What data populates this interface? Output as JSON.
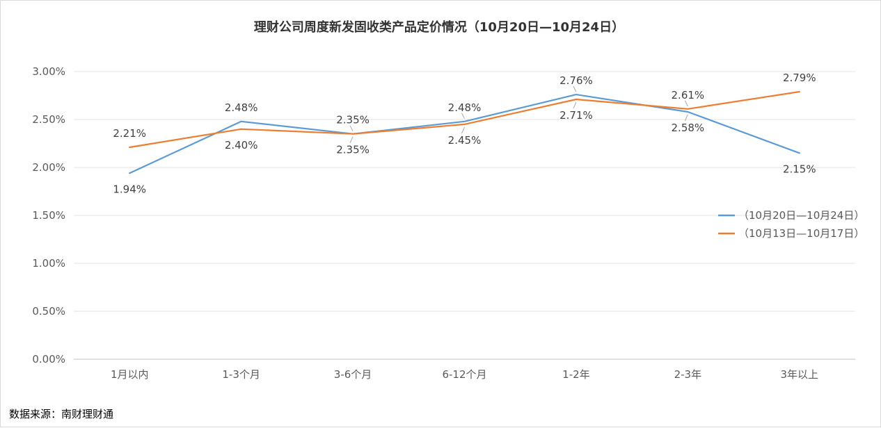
{
  "chart_data": {
    "type": "line",
    "title": "理财公司周度新发固收类产品定价情况（10月20日—10月24日）",
    "categories": [
      "1月以内",
      "1-3个月",
      "3-6个月",
      "6-12个月",
      "1-2年",
      "2-3年",
      "3年以上"
    ],
    "y_tick_labels": [
      "0.00%",
      "0.50%",
      "1.00%",
      "1.50%",
      "2.00%",
      "2.50%",
      "3.00%"
    ],
    "ylim": [
      0,
      3.0
    ],
    "y_unit": "%",
    "grid": true,
    "legend_position": "right",
    "series": [
      {
        "name": "（10月20日—10月24日）",
        "color": "#5B9BD5",
        "values": [
          1.94,
          2.48,
          2.35,
          2.48,
          2.76,
          2.58,
          2.15
        ],
        "labels": [
          "1.94%",
          "2.48%",
          "2.35%",
          "2.48%",
          "2.76%",
          "2.58%",
          "2.15%"
        ]
      },
      {
        "name": "（10月13日—10月17日）",
        "color": "#ED7D31",
        "values": [
          2.21,
          2.4,
          2.35,
          2.45,
          2.71,
          2.61,
          2.79
        ],
        "labels": [
          "2.21%",
          "2.40%",
          "2.35%",
          "2.45%",
          "2.71%",
          "2.61%",
          "2.79%"
        ]
      }
    ]
  },
  "source_note": "数据来源：南财理财通"
}
